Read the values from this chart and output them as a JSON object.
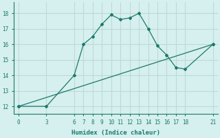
{
  "xlabel": "Humidex (Indice chaleur)",
  "bg_color": "#d6efef",
  "line_color": "#1a7a6a",
  "grid_color": "#c0d8d8",
  "series1_x": [
    0,
    3,
    6,
    7,
    8,
    9,
    10,
    11,
    12,
    13,
    14,
    15,
    16,
    17,
    18,
    21
  ],
  "series1_y": [
    12,
    12,
    14,
    16,
    16.5,
    17.3,
    17.9,
    17.6,
    17.7,
    18.0,
    17.0,
    15.9,
    15.3,
    14.5,
    14.4,
    16.0
  ],
  "series2_x": [
    0,
    21
  ],
  "series2_y": [
    12,
    16.0
  ],
  "xticks": [
    0,
    3,
    6,
    7,
    8,
    9,
    10,
    11,
    12,
    13,
    14,
    15,
    16,
    17,
    18,
    21
  ],
  "yticks": [
    12,
    13,
    14,
    15,
    16,
    17,
    18
  ],
  "xlim": [
    -0.5,
    21.5
  ],
  "ylim": [
    11.5,
    18.7
  ]
}
